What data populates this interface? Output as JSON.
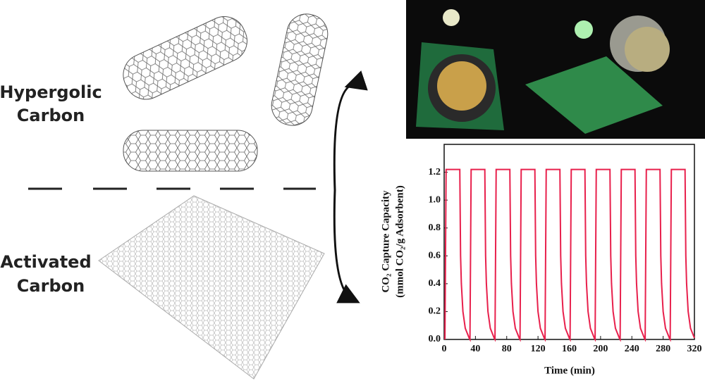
{
  "labels": {
    "top": [
      "Hypergolic",
      "Carbon"
    ],
    "bottom": [
      "Activated",
      "Carbon"
    ]
  },
  "chart_data": {
    "type": "line",
    "xlabel": "Time (min)",
    "ylabel": [
      "CO₂ Capture Capacity",
      "(mmol CO₂/g Adsorbent)"
    ],
    "xlim": [
      0,
      320
    ],
    "xticks": [
      0,
      40,
      80,
      120,
      160,
      200,
      240,
      280,
      320
    ],
    "ylim": [
      0,
      1.4
    ],
    "yticks": [
      {
        "value": 0,
        "label": "0.0"
      },
      {
        "value": 0.2,
        "label": "0.2"
      },
      {
        "value": 0.4,
        "label": "0.4"
      },
      {
        "value": 0.6,
        "label": "0.6"
      },
      {
        "value": 0.8,
        "label": "0.8"
      },
      {
        "value": 1,
        "label": "1.0"
      },
      {
        "value": 1.2,
        "label": "1.2"
      }
    ],
    "x": [
      1,
      2.5,
      20,
      21,
      22,
      24,
      27,
      32,
      33,
      34.5,
      52,
      53,
      54,
      56,
      59,
      64,
      65,
      66.5,
      84,
      85,
      86,
      88,
      91,
      96,
      97,
      98.5,
      116,
      117,
      118,
      120,
      123,
      128,
      129,
      130.5,
      148,
      149,
      150,
      152,
      155,
      160,
      161,
      162.5,
      180,
      181,
      182,
      184,
      187,
      192,
      193,
      194.5,
      212,
      213,
      214,
      216,
      219,
      224,
      225,
      226.5,
      244,
      245,
      246,
      248,
      251,
      256,
      257,
      258.5,
      276,
      277,
      278,
      280,
      283,
      288,
      289,
      290.5,
      308,
      309,
      310,
      312,
      315,
      320
    ],
    "series": [
      {
        "color": "#e8204c",
        "values": [
          0,
          1.22,
          1.22,
          0.6,
          0.4,
          0.2,
          0.08,
          0.01,
          0,
          1.22,
          1.22,
          0.6,
          0.4,
          0.2,
          0.08,
          0.01,
          0,
          1.22,
          1.22,
          0.6,
          0.4,
          0.2,
          0.08,
          0.01,
          0,
          1.22,
          1.22,
          0.6,
          0.4,
          0.2,
          0.08,
          0.01,
          0,
          1.22,
          1.22,
          0.6,
          0.4,
          0.2,
          0.08,
          0.01,
          0,
          1.22,
          1.22,
          0.6,
          0.4,
          0.2,
          0.08,
          0.01,
          0,
          1.22,
          1.22,
          0.6,
          0.4,
          0.2,
          0.08,
          0.01,
          0,
          1.22,
          1.22,
          0.6,
          0.4,
          0.2,
          0.08,
          0.01,
          0,
          1.22,
          1.22,
          0.6,
          0.4,
          0.2,
          0.08,
          0.01,
          0,
          1.22,
          1.22,
          0.6,
          0.4,
          0.2,
          0.08,
          0.01
        ]
      }
    ]
  }
}
